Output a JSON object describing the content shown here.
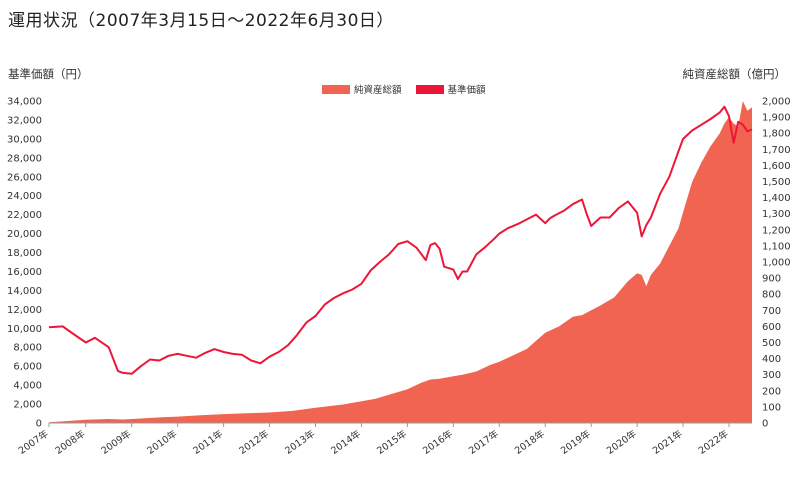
{
  "page": {
    "title": "運用状況（2007年3月15日〜2022年6月30日）"
  },
  "chart_data": {
    "type": "area",
    "ylabel_left": "基準価額（円）",
    "ylabel_right": "純資産総額（億円）",
    "legend": [
      {
        "name": "純資産総額",
        "color": "#F16451"
      },
      {
        "name": "基準価額",
        "color": "#EE1638"
      }
    ],
    "legend_position": "top-center",
    "grid": false,
    "x_ticks": [
      "2007年",
      "2008年",
      "2009年",
      "2010年",
      "2011年",
      "2012年",
      "2013年",
      "2014年",
      "2015年",
      "2016年",
      "2017年",
      "2018年",
      "2019年",
      "2020年",
      "2021年",
      "2022年"
    ],
    "x_range": [
      2007.2,
      2022.5
    ],
    "ylim_left": [
      0,
      34000
    ],
    "yticks_left": [
      "0",
      "2,000",
      "4,000",
      "6,000",
      "8,000",
      "10,000",
      "12,000",
      "14,000",
      "16,000",
      "18,000",
      "20,000",
      "22,000",
      "24,000",
      "26,000",
      "28,000",
      "30,000",
      "32,000",
      "34,000"
    ],
    "ylim_right": [
      0,
      2000
    ],
    "yticks_right": [
      "0",
      "100",
      "200",
      "300",
      "400",
      "500",
      "600",
      "700",
      "800",
      "900",
      "1,000",
      "1,100",
      "1,200",
      "1,300",
      "1,400",
      "1,500",
      "1,600",
      "1,700",
      "1,800",
      "1,900",
      "2,000"
    ],
    "series": [
      {
        "name": "純資産総額",
        "axis": "right",
        "x": [
          2007.2,
          2007.5,
          2008.0,
          2008.5,
          2008.8,
          2009.2,
          2009.6,
          2010.0,
          2010.5,
          2011.0,
          2011.5,
          2012.0,
          2012.5,
          2013.0,
          2013.3,
          2013.6,
          2014.0,
          2014.3,
          2014.6,
          2015.0,
          2015.3,
          2015.5,
          2015.7,
          2016.0,
          2016.2,
          2016.5,
          2016.8,
          2017.0,
          2017.3,
          2017.6,
          2018.0,
          2018.3,
          2018.6,
          2018.8,
          2019.0,
          2019.2,
          2019.5,
          2019.8,
          2020.0,
          2020.1,
          2020.2,
          2020.3,
          2020.5,
          2020.7,
          2020.9,
          2021.0,
          2021.2,
          2021.4,
          2021.6,
          2021.8,
          2021.9,
          2022.0,
          2022.1,
          2022.2,
          2022.3,
          2022.4,
          2022.5
        ],
        "y": [
          5,
          10,
          20,
          25,
          22,
          28,
          35,
          40,
          48,
          55,
          60,
          65,
          75,
          95,
          105,
          115,
          135,
          150,
          175,
          210,
          250,
          270,
          275,
          290,
          300,
          320,
          360,
          380,
          420,
          460,
          560,
          600,
          660,
          670,
          700,
          730,
          780,
          880,
          930,
          920,
          850,
          920,
          990,
          1100,
          1210,
          1310,
          1500,
          1620,
          1720,
          1800,
          1860,
          1900,
          1860,
          1840,
          2000,
          1940,
          1960
        ]
      },
      {
        "name": "基準価額",
        "axis": "left",
        "x": [
          2007.2,
          2007.5,
          2007.7,
          2008.0,
          2008.2,
          2008.5,
          2008.7,
          2008.8,
          2009.0,
          2009.2,
          2009.4,
          2009.6,
          2009.8,
          2010.0,
          2010.2,
          2010.4,
          2010.6,
          2010.8,
          2011.0,
          2011.2,
          2011.4,
          2011.6,
          2011.8,
          2012.0,
          2012.2,
          2012.4,
          2012.6,
          2012.8,
          2013.0,
          2013.2,
          2013.4,
          2013.6,
          2013.8,
          2014.0,
          2014.2,
          2014.4,
          2014.6,
          2014.8,
          2015.0,
          2015.2,
          2015.4,
          2015.5,
          2015.6,
          2015.7,
          2015.8,
          2016.0,
          2016.1,
          2016.2,
          2016.3,
          2016.5,
          2016.7,
          2016.9,
          2017.0,
          2017.2,
          2017.4,
          2017.6,
          2017.8,
          2018.0,
          2018.1,
          2018.2,
          2018.4,
          2018.6,
          2018.8,
          2018.9,
          2019.0,
          2019.2,
          2019.4,
          2019.6,
          2019.8,
          2020.0,
          2020.1,
          2020.2,
          2020.3,
          2020.5,
          2020.7,
          2020.9,
          2021.0,
          2021.2,
          2021.4,
          2021.6,
          2021.8,
          2021.9,
          2022.0,
          2022.1,
          2022.2,
          2022.3,
          2022.4,
          2022.5
        ],
        "y": [
          10100,
          10200,
          9500,
          8500,
          9000,
          8000,
          5500,
          5300,
          5200,
          6000,
          6700,
          6600,
          7100,
          7300,
          7100,
          6900,
          7400,
          7800,
          7500,
          7300,
          7200,
          6600,
          6300,
          7000,
          7500,
          8200,
          9300,
          10600,
          11300,
          12500,
          13200,
          13700,
          14100,
          14700,
          16100,
          17000,
          17800,
          18900,
          19200,
          18500,
          17200,
          18800,
          19000,
          18400,
          16500,
          16200,
          15200,
          16000,
          16000,
          17800,
          18600,
          19500,
          20000,
          20600,
          21000,
          21500,
          22000,
          21100,
          21600,
          21900,
          22400,
          23100,
          23600,
          22100,
          20800,
          21700,
          21700,
          22700,
          23400,
          22200,
          19700,
          20900,
          21700,
          24200,
          26000,
          28700,
          30000,
          30900,
          31500,
          32100,
          32800,
          33400,
          32400,
          29600,
          31800,
          31500,
          30800,
          31000
        ]
      }
    ]
  }
}
